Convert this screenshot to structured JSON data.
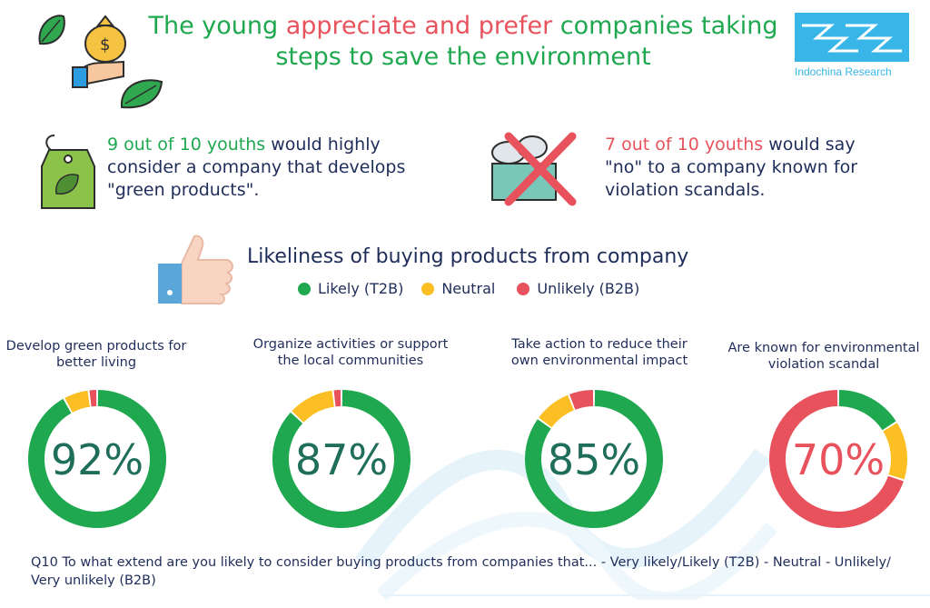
{
  "title": {
    "part1": "The young ",
    "highlight": "appreciate and prefer",
    "part2": " companies taking steps to save the environment"
  },
  "brand": {
    "name": "Indochina Research"
  },
  "stats": [
    {
      "highlight": "9 out of 10 youths",
      "text": " would highly consider a company that develops \"green products\"."
    },
    {
      "highlight": "7 out of 10 youths",
      "text": " would say \"no\" to a company known for violation scandals."
    }
  ],
  "legend": {
    "title": "Likeliness of buying products from company",
    "items": [
      {
        "label": "Likely (T2B)",
        "color": "#1fa84f"
      },
      {
        "label": "Neutral",
        "color": "#fbbf24"
      },
      {
        "label": "Unlikely (B2B)",
        "color": "#e8525d"
      }
    ]
  },
  "chart_data": [
    {
      "type": "pie",
      "title": "Develop green products for better living",
      "center_label": "92%",
      "series": [
        {
          "values": [
            92,
            6,
            2
          ]
        }
      ],
      "categories": [
        "Likely (T2B)",
        "Neutral",
        "Unlikely (B2B)"
      ]
    },
    {
      "type": "pie",
      "title": "Organize activities or support the local communities",
      "center_label": "87%",
      "series": [
        {
          "values": [
            87,
            11,
            2
          ]
        }
      ],
      "categories": [
        "Likely (T2B)",
        "Neutral",
        "Unlikely (B2B)"
      ]
    },
    {
      "type": "pie",
      "title": "Take action to reduce their own environmental impact",
      "center_label": "85%",
      "series": [
        {
          "values": [
            85,
            9,
            6
          ]
        }
      ],
      "categories": [
        "Likely (T2B)",
        "Neutral",
        "Unlikely (B2B)"
      ]
    },
    {
      "type": "pie",
      "title": "Are known for environmental violation scandal",
      "center_label": "70%",
      "series": [
        {
          "values": [
            16,
            14,
            70
          ]
        }
      ],
      "categories": [
        "Likely (T2B)",
        "Neutral",
        "Unlikely (B2B)"
      ]
    }
  ],
  "note": "Q10  To what extend are you likely to consider buying products from companies that... - Very likely/Likely (T2B) - Neutral - Unlikely/ Very unlikely (B2B)"
}
